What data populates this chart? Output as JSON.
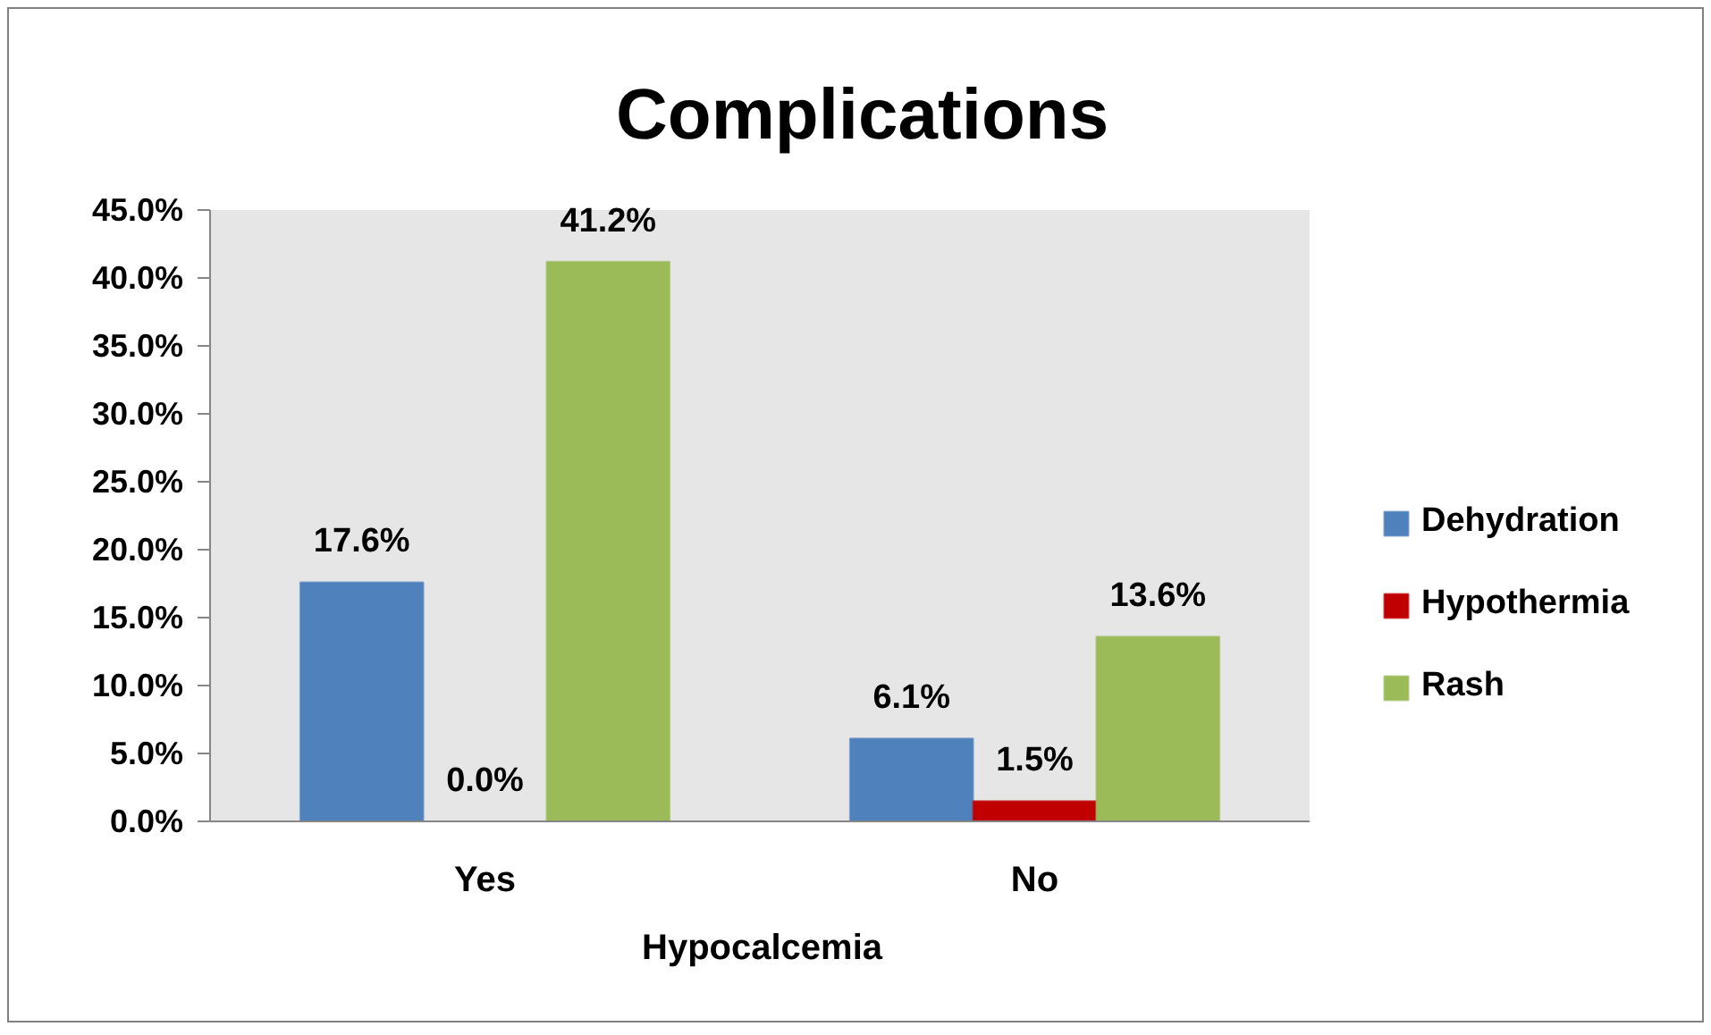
{
  "chart_data": {
    "type": "bar",
    "title": "Complications",
    "xlabel": "Hypocalcemia",
    "categories": [
      "Yes",
      "No"
    ],
    "series": [
      {
        "name": "Dehydration",
        "color": "#4f81bd",
        "values": [
          17.6,
          6.1
        ],
        "value_labels": [
          "17.6%",
          "6.1%"
        ]
      },
      {
        "name": "Hypothermia",
        "color": "#c00000",
        "values": [
          0.0,
          1.5
        ],
        "value_labels": [
          "0.0%",
          "1.5%"
        ]
      },
      {
        "name": "Rash",
        "color": "#9bbb59",
        "values": [
          41.2,
          13.6
        ],
        "value_labels": [
          "41.2%",
          "13.6%"
        ]
      }
    ],
    "ylim": [
      0,
      45
    ],
    "yticks": [
      {
        "value": 0,
        "label": "0.0%"
      },
      {
        "value": 5,
        "label": "5.0%"
      },
      {
        "value": 10,
        "label": "10.0%"
      },
      {
        "value": 15,
        "label": "15.0%"
      },
      {
        "value": 20,
        "label": "20.0%"
      },
      {
        "value": 25,
        "label": "25.0%"
      },
      {
        "value": 30,
        "label": "30.0%"
      },
      {
        "value": 35,
        "label": "35.0%"
      },
      {
        "value": 40,
        "label": "40.0%"
      },
      {
        "value": 45,
        "label": "45.0%"
      }
    ],
    "grid": false,
    "legend": "right"
  }
}
